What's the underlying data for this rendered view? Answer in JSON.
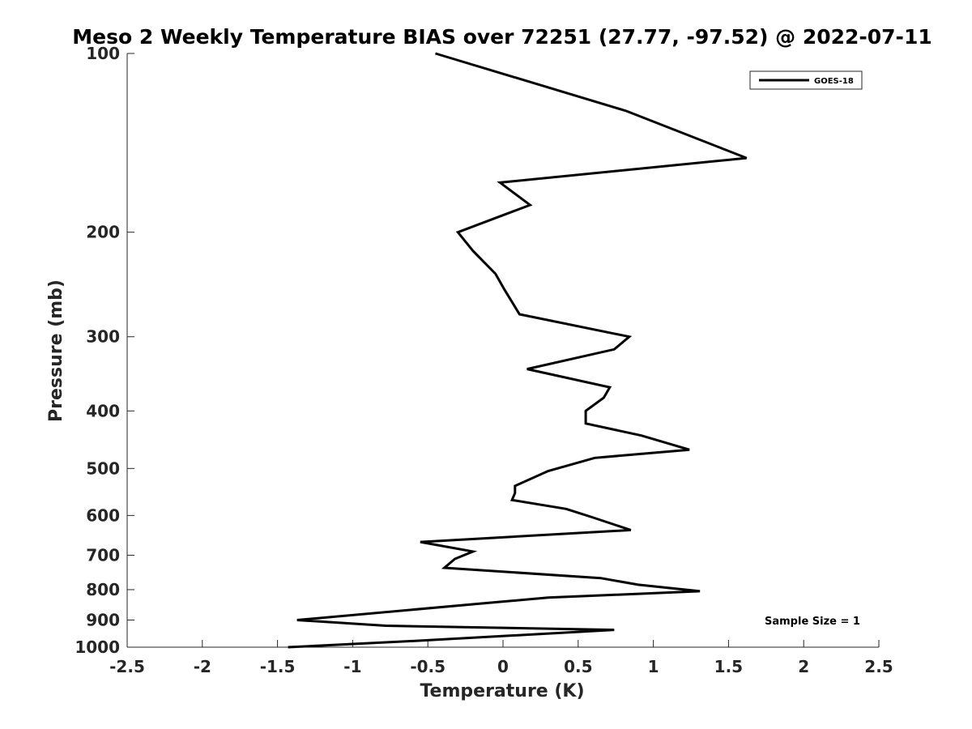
{
  "chart_data": {
    "type": "line",
    "title": "Meso 2 Weekly Temperature BIAS over 72251 (27.77, -97.52) @ 2022-07-11",
    "xlabel": "Temperature (K)",
    "ylabel": "Pressure (mb)",
    "xlim": [
      -2.5,
      2.5
    ],
    "ylim": [
      100,
      1000
    ],
    "y_scale": "log",
    "y_reversed": true,
    "x_ticks": [
      "-2.5",
      "-2",
      "-1.5",
      "-1",
      "-0.5",
      "0",
      "0.5",
      "1",
      "1.5",
      "2",
      "2.5"
    ],
    "x_tick_values": [
      -2.5,
      -2,
      -1.5,
      -1,
      -0.5,
      0,
      0.5,
      1,
      1.5,
      2,
      2.5
    ],
    "y_ticks": [
      "100",
      "200",
      "300",
      "400",
      "500",
      "600",
      "700",
      "800",
      "900",
      "1000"
    ],
    "y_tick_values": [
      100,
      200,
      300,
      400,
      500,
      600,
      700,
      800,
      900,
      1000
    ],
    "grid": false,
    "legend_position": "top-right",
    "annotation": "Sample Size = 1",
    "series": [
      {
        "name": "GOES-18",
        "color": "#000000",
        "points": [
          {
            "x": -0.45,
            "p": 100
          },
          {
            "x": 0.82,
            "p": 125
          },
          {
            "x": 1.62,
            "p": 150
          },
          {
            "x": -0.02,
            "p": 165
          },
          {
            "x": 0.18,
            "p": 180
          },
          {
            "x": -0.3,
            "p": 200
          },
          {
            "x": -0.2,
            "p": 215
          },
          {
            "x": -0.05,
            "p": 235
          },
          {
            "x": 0.01,
            "p": 250
          },
          {
            "x": 0.11,
            "p": 275
          },
          {
            "x": 0.84,
            "p": 300
          },
          {
            "x": 0.74,
            "p": 315
          },
          {
            "x": 0.16,
            "p": 340
          },
          {
            "x": 0.71,
            "p": 365
          },
          {
            "x": 0.67,
            "p": 380
          },
          {
            "x": 0.55,
            "p": 400
          },
          {
            "x": 0.55,
            "p": 420
          },
          {
            "x": 0.92,
            "p": 440
          },
          {
            "x": 1.24,
            "p": 465
          },
          {
            "x": 0.61,
            "p": 480
          },
          {
            "x": 0.3,
            "p": 505
          },
          {
            "x": 0.08,
            "p": 535
          },
          {
            "x": 0.08,
            "p": 550
          },
          {
            "x": 0.06,
            "p": 565
          },
          {
            "x": 0.42,
            "p": 585
          },
          {
            "x": 0.6,
            "p": 605
          },
          {
            "x": 0.85,
            "p": 635
          },
          {
            "x": -0.55,
            "p": 665
          },
          {
            "x": -0.2,
            "p": 690
          },
          {
            "x": -0.32,
            "p": 710
          },
          {
            "x": -0.39,
            "p": 735
          },
          {
            "x": 0.65,
            "p": 765
          },
          {
            "x": 0.9,
            "p": 785
          },
          {
            "x": 1.31,
            "p": 805
          },
          {
            "x": 0.3,
            "p": 825
          },
          {
            "x": -0.05,
            "p": 840
          },
          {
            "x": -1.37,
            "p": 900
          },
          {
            "x": -0.78,
            "p": 920
          },
          {
            "x": 0.74,
            "p": 935
          },
          {
            "x": -0.55,
            "p": 975
          },
          {
            "x": -1.43,
            "p": 1000
          }
        ]
      }
    ]
  }
}
